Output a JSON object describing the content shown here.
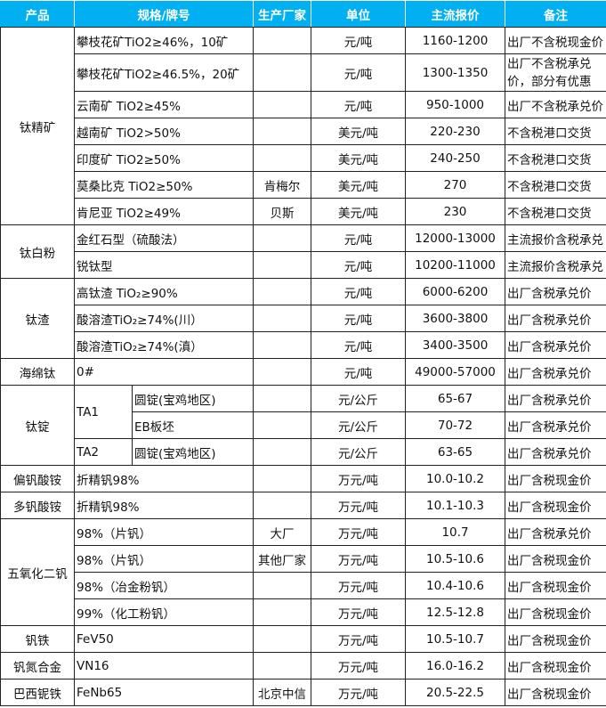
{
  "header": {
    "product": "产品",
    "spec": "规格/牌号",
    "maker": "生产厂家",
    "unit": "单位",
    "price": "主流报价",
    "note": "备注"
  },
  "header_color": "#00b0f0",
  "groups": [
    {
      "product": "钛精矿",
      "items": [
        {
          "spec": "攀枝花矿TiO2≥46%，10矿",
          "maker": "",
          "unit": "元/吨",
          "price": "1160-1200",
          "note": "出厂不含税现金价"
        },
        {
          "spec": "攀枝花矿TiO2≥46.5%，20矿",
          "maker": "",
          "unit": "元/吨",
          "price": "1300-1350",
          "note": "出厂不含税承兑价，部分有优惠"
        },
        {
          "spec": "云南矿 TiO2≥45%",
          "maker": "",
          "unit": "元/吨",
          "price": "950-1000",
          "note": "出厂不含税承兑价"
        },
        {
          "spec": "越南矿 TiO2>50%",
          "maker": "",
          "unit": "美元/吨",
          "price": "220-230",
          "note": "不含税港口交货"
        },
        {
          "spec": "印度矿 TiO2≥50%",
          "maker": "",
          "unit": "美元/吨",
          "price": "240-250",
          "note": "不含税港口交货"
        },
        {
          "spec": "莫桑比克 TiO2≥50%",
          "maker": "肯梅尔",
          "unit": "美元/吨",
          "price": "270",
          "note": "不含税港口交货"
        },
        {
          "spec": "肯尼亚 TiO2≥49%",
          "maker": "贝斯",
          "unit": "美元/吨",
          "price": "230",
          "note": "不含税港口交货"
        }
      ]
    },
    {
      "product": "钛白粉",
      "items": [
        {
          "spec": "金红石型（硫酸法）",
          "maker": "",
          "unit": "元/吨",
          "price": "12000-13000",
          "note": "主流报价含税承兑"
        },
        {
          "spec": "锐钛型",
          "maker": "",
          "unit": "元/吨",
          "price": "10200-11000",
          "note": "主流报价含税承兑"
        }
      ]
    },
    {
      "product": "钛渣",
      "items": [
        {
          "spec": "高钛渣 TiO₂≥90%",
          "maker": "",
          "unit": "元/吨",
          "price": "6000-6200",
          "note": "出厂含税承兑价"
        },
        {
          "spec": "酸溶渣TiO₂≥74%(川）",
          "maker": "",
          "unit": "元/吨",
          "price": "3600-3800",
          "note": "出厂含税承兑价"
        },
        {
          "spec": "酸溶渣TiO₂≥74%(滇）",
          "maker": "",
          "unit": "元/吨",
          "price": "3400-3500",
          "note": "出厂含税承兑价"
        }
      ]
    },
    {
      "product": "海绵钛",
      "items": [
        {
          "spec": "0#",
          "maker": "",
          "unit": "元/吨",
          "price": "49000-57000",
          "note": "出厂含税承兑价"
        }
      ]
    },
    {
      "product": "钛锭",
      "grades": [
        {
          "grade": "TA1",
          "items": [
            {
              "spec": "圆锭(宝鸡地区)",
              "maker": "",
              "unit": "元/公斤",
              "price": "65-67",
              "note": "出厂含税承兑价"
            },
            {
              "spec": "EB板坯",
              "maker": "",
              "unit": "元/公斤",
              "price": "70-72",
              "note": "出厂含税承兑价"
            }
          ]
        },
        {
          "grade": "TA2",
          "items": [
            {
              "spec": "圆锭(宝鸡地区)",
              "maker": "",
              "unit": "元/公斤",
              "price": "63-65",
              "note": "出厂含税承兑价"
            }
          ]
        }
      ]
    },
    {
      "product": "偏钒酸铵",
      "items": [
        {
          "spec": "折精钒98%",
          "maker": "",
          "unit": "万元/吨",
          "price": "10.0-10.2",
          "note": "出厂含税现金价"
        }
      ]
    },
    {
      "product": "多钒酸铵",
      "items": [
        {
          "spec": "折精钒98%",
          "maker": "",
          "unit": "万元/吨",
          "price": "10.1-10.3",
          "note": "出厂含税现金价"
        }
      ]
    },
    {
      "product": "五氧化二钒",
      "items": [
        {
          "spec": "98%（片钒）",
          "maker": "大厂",
          "unit": "万元/吨",
          "price": "10.7",
          "note": "出厂含税承兑价"
        },
        {
          "spec": "98%（片钒）",
          "maker": "其他厂家",
          "unit": "万元/吨",
          "price": "10.5-10.6",
          "note": "出厂含税现金价"
        },
        {
          "spec": "98%（冶金粉钒）",
          "maker": "",
          "unit": "万元/吨",
          "price": "10.4-10.6",
          "note": "出厂含税现金价"
        },
        {
          "spec": "99%（化工粉钒）",
          "maker": "",
          "unit": "万元/吨",
          "price": "12.5-12.8",
          "note": "出厂含税现金价"
        }
      ]
    },
    {
      "product": "钒铁",
      "items": [
        {
          "spec": "FeV50",
          "maker": "",
          "unit": "万元/吨",
          "price": "10.5-10.7",
          "note": "出厂含税现金价"
        }
      ]
    },
    {
      "product": "钒氮合金",
      "items": [
        {
          "spec": "VN16",
          "maker": "",
          "unit": "万元/吨",
          "price": "16.0-16.2",
          "note": "出厂含税现金价"
        }
      ]
    },
    {
      "product": "巴西铌铁",
      "items": [
        {
          "spec": "FeNb65",
          "maker": "北京中信",
          "unit": "万元/吨",
          "price": "20.5-22.5",
          "note": "出厂含税现金价"
        }
      ]
    }
  ]
}
